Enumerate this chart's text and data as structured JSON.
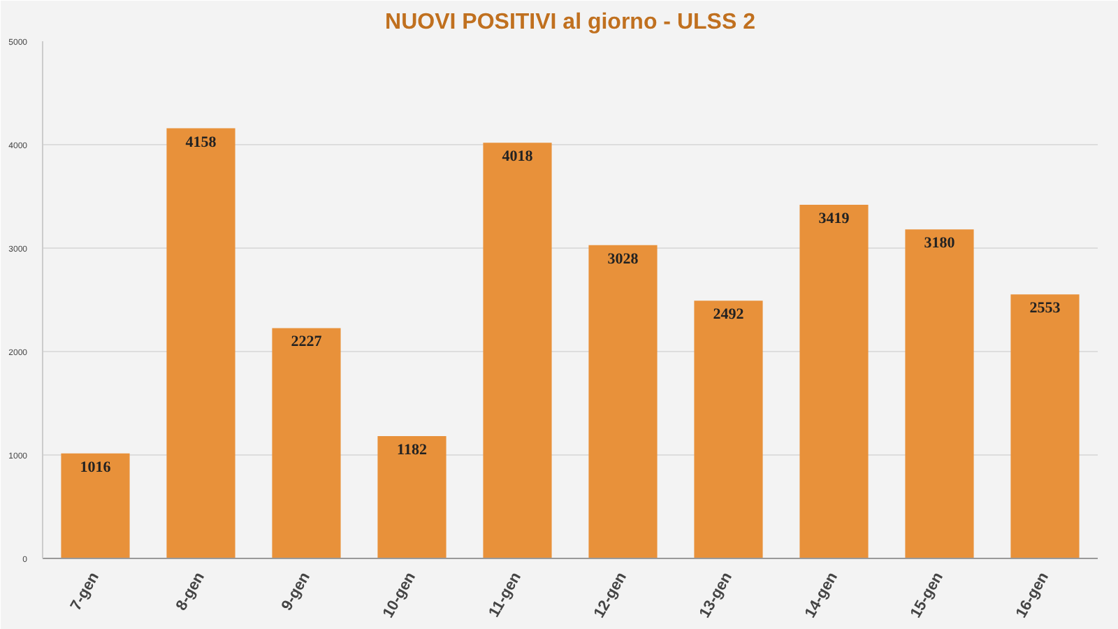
{
  "chart_data": {
    "type": "bar",
    "title": "NUOVI POSITIVI al giorno - ULSS 2",
    "categories": [
      "7-gen",
      "8-gen",
      "9-gen",
      "10-gen",
      "11-gen",
      "12-gen",
      "13-gen",
      "14-gen",
      "15-gen",
      "16-gen"
    ],
    "values": [
      1016,
      4158,
      2227,
      1182,
      4018,
      3028,
      2492,
      3419,
      3180,
      2553
    ],
    "color": "#e8913a",
    "ylim": [
      0,
      5000
    ],
    "yticks": [
      0,
      1000,
      2000,
      3000,
      4000,
      5000
    ],
    "grid": "y",
    "data_labels": true
  }
}
